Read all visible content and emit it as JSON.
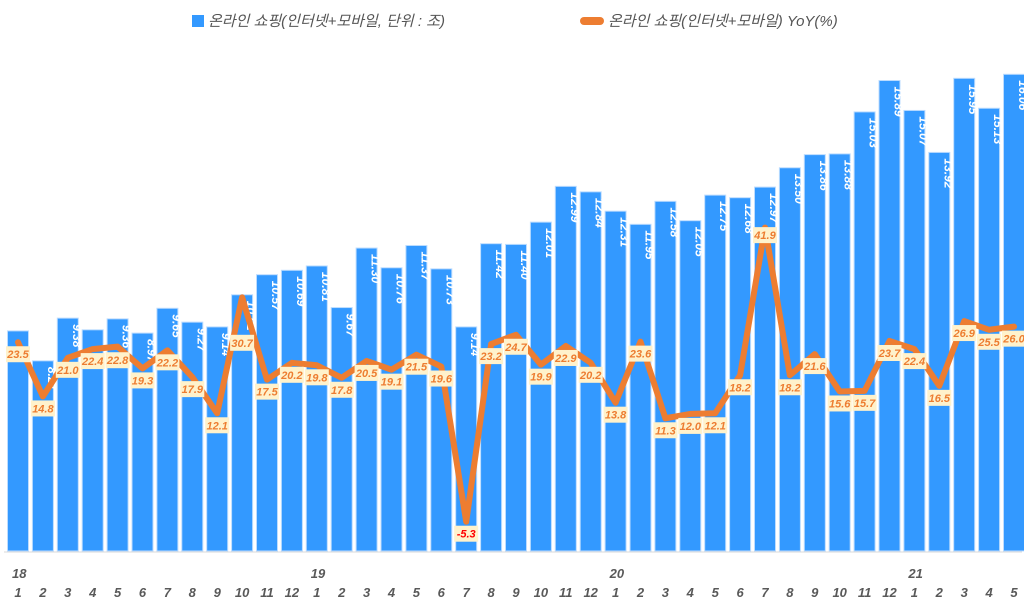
{
  "chart_data": {
    "type": "bar+line",
    "title": "",
    "legend_placement": "top",
    "grid": false,
    "colors": {
      "bars": "#3399ff",
      "line": "#ed7d31",
      "label_box": "#fff2cc",
      "negative_label": "#ff0000"
    },
    "series": [
      {
        "name": "온라인 쇼핑(인터넷+모바일, 단위 : 조)",
        "type": "bar",
        "axis": "left",
        "values": [
          9.03,
          8.21,
          9.38,
          9.06,
          9.36,
          8.97,
          9.65,
          9.27,
          9.14,
          10.02,
          10.57,
          10.69,
          10.81,
          9.67,
          11.3,
          10.76,
          11.37,
          10.73,
          9.14,
          11.42,
          11.4,
          12.01,
          12.99,
          12.84,
          12.31,
          11.95,
          12.58,
          12.05,
          12.75,
          12.68,
          12.97,
          13.5,
          13.86,
          13.88,
          15.03,
          15.89,
          15.07,
          13.92,
          15.95,
          15.13,
          16.06
        ],
        "hidden_labels": [
          0,
          3
        ]
      },
      {
        "name": "온라인 쇼핑(인터넷+모바일) YoY(%)",
        "type": "line",
        "axis": "right",
        "values": [
          23.5,
          14.8,
          21.0,
          22.4,
          22.8,
          19.3,
          22.2,
          17.9,
          12.1,
          30.7,
          17.5,
          20.2,
          19.8,
          17.8,
          20.5,
          19.1,
          21.5,
          19.6,
          -5.3,
          23.2,
          24.7,
          19.9,
          22.9,
          20.2,
          13.8,
          23.6,
          11.3,
          12.0,
          12.1,
          18.2,
          41.9,
          18.2,
          21.6,
          15.6,
          15.7,
          23.7,
          22.4,
          16.5,
          26.9,
          25.5,
          26.0
        ]
      }
    ],
    "categories": [
      "1",
      "2",
      "3",
      "4",
      "5",
      "6",
      "7",
      "8",
      "9",
      "10",
      "11",
      "12",
      "1",
      "2",
      "3",
      "4",
      "5",
      "6",
      "7",
      "8",
      "9",
      "10",
      "11",
      "12",
      "1",
      "2",
      "3",
      "4",
      "5",
      "6",
      "7",
      "8",
      "9",
      "10",
      "11",
      "12",
      "1",
      "2",
      "3",
      "4",
      "5"
    ],
    "year_labels": [
      {
        "index": 0,
        "label": "18"
      },
      {
        "index": 12,
        "label": "19"
      },
      {
        "index": 24,
        "label": "20"
      },
      {
        "index": 36,
        "label": "21"
      }
    ],
    "ylim_left": [
      3,
      17
    ],
    "ylim_right": [
      -10,
      72
    ]
  }
}
